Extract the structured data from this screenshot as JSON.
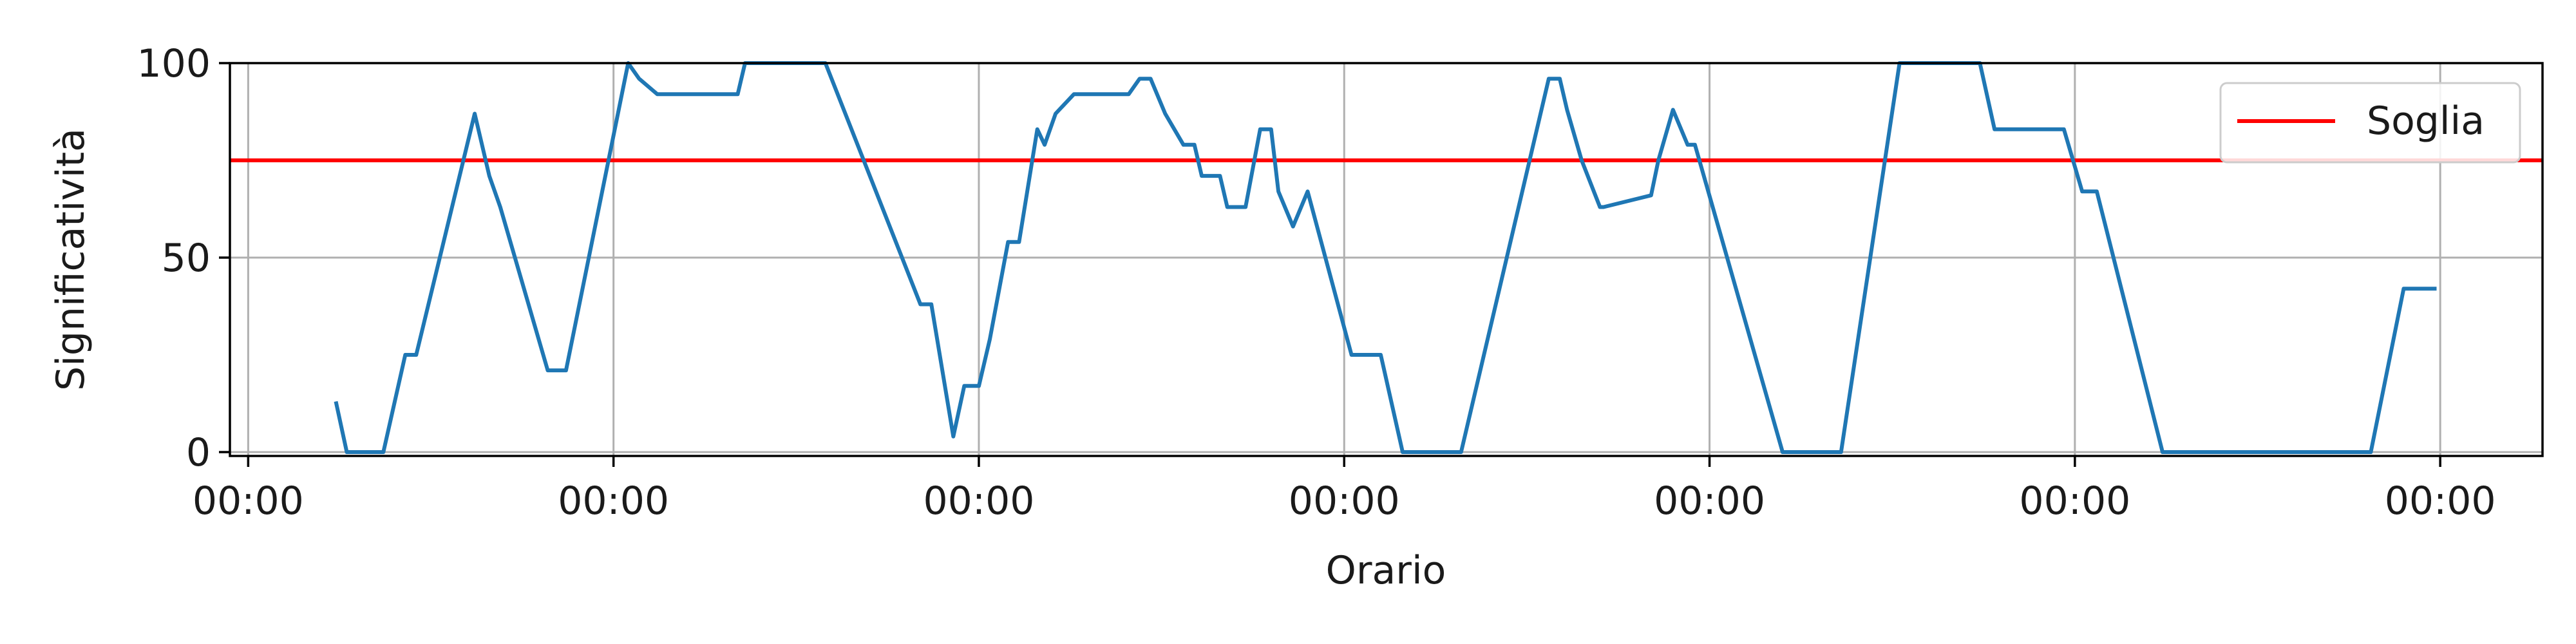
{
  "chart_data": {
    "type": "line",
    "title": "",
    "xlabel": "Orario",
    "ylabel": "Significatività",
    "x_ticks": [
      "00:00",
      "00:00",
      "00:00",
      "00:00",
      "00:00",
      "00:00",
      "00:00"
    ],
    "y_ticks": [
      "0",
      "50",
      "100"
    ],
    "xlim": [
      -0.05,
      6.28
    ],
    "ylim": [
      -1,
      100
    ],
    "grid": true,
    "legend": {
      "placement": "top-right",
      "entries": [
        "Soglia"
      ]
    },
    "colors": {
      "series": "#1f77b4",
      "threshold": "#ff0000"
    },
    "threshold": {
      "name": "Soglia",
      "value": 75
    },
    "series": [
      {
        "x": [
          0.24,
          0.27,
          0.37,
          0.43,
          0.46,
          0.62,
          0.66,
          0.69,
          0.82,
          0.87,
          1.04,
          1.07,
          1.12,
          1.34,
          1.36,
          1.58,
          1.84,
          1.87,
          1.93,
          1.96,
          2.0,
          2.03,
          2.08,
          2.11,
          2.16,
          2.18,
          2.21,
          2.26,
          2.41,
          2.44,
          2.47,
          2.51,
          2.56,
          2.59,
          2.61,
          2.66,
          2.68,
          2.73,
          2.77,
          2.8,
          2.82,
          2.86,
          2.9,
          3.02,
          3.1,
          3.16,
          3.32,
          3.56,
          3.59,
          3.61,
          3.65,
          3.7,
          3.71,
          3.84,
          3.86,
          3.9,
          3.94,
          3.96,
          4.2,
          4.36,
          4.52,
          4.74,
          4.78,
          4.97,
          5.02,
          5.06,
          5.24,
          5.81,
          5.9,
          5.99
        ],
        "y": [
          13,
          0,
          0,
          25,
          25,
          87,
          71,
          63,
          21,
          21,
          100,
          96,
          92,
          92,
          100,
          100,
          38,
          38,
          4,
          17,
          17,
          29,
          54,
          54,
          83,
          79,
          87,
          92,
          92,
          96,
          96,
          87,
          79,
          79,
          71,
          71,
          63,
          63,
          83,
          83,
          67,
          58,
          67,
          25,
          25,
          0,
          0,
          96,
          96,
          88,
          75,
          63,
          63,
          66,
          75,
          88,
          79,
          79,
          0,
          0,
          100,
          100,
          83,
          83,
          67,
          67,
          0,
          0,
          42,
          42
        ]
      }
    ]
  }
}
